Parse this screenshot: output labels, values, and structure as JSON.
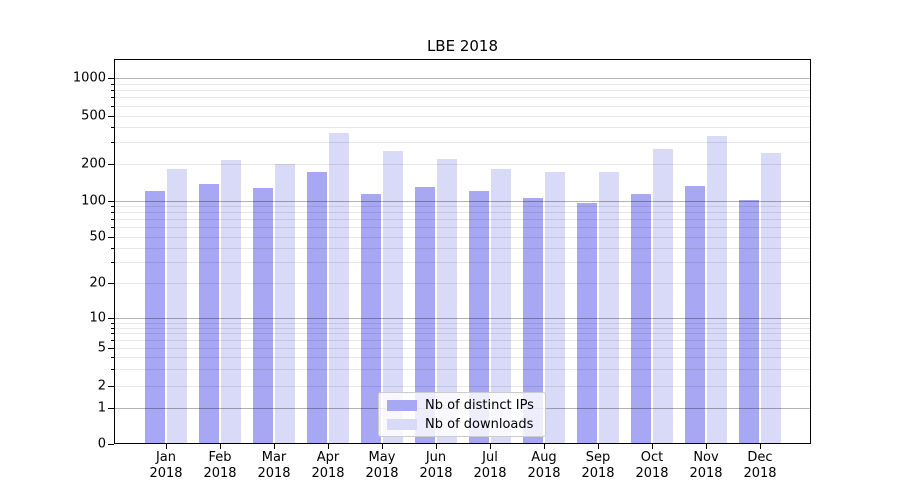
{
  "title": "LBE 2018",
  "chart_data": {
    "type": "bar",
    "title": "LBE 2018",
    "categories": [
      "Jan",
      "Feb",
      "Mar",
      "Apr",
      "May",
      "Jun",
      "Jul",
      "Aug",
      "Sep",
      "Oct",
      "Nov",
      "Dec"
    ],
    "category_year": "2018",
    "series": [
      {
        "name": "Nb of distinct IPs",
        "color": "#a7a7f3",
        "values": [
          120,
          138,
          127,
          173,
          113,
          129,
          120,
          105,
          96,
          113,
          131,
          101
        ]
      },
      {
        "name": "Nb of downloads",
        "color": "#d9d9f8",
        "values": [
          182,
          213,
          198,
          360,
          255,
          217,
          180,
          170,
          170,
          264,
          340,
          246
        ]
      }
    ],
    "yscale": "symlog",
    "yticks": [
      0,
      1,
      2,
      5,
      10,
      20,
      50,
      100,
      200,
      500,
      1000
    ],
    "major_yticks": [
      1,
      10,
      100,
      1000
    ],
    "ylim": [
      0,
      1400
    ],
    "xlabel": "",
    "ylabel": "",
    "grid": true,
    "legend_position": "lower center"
  }
}
